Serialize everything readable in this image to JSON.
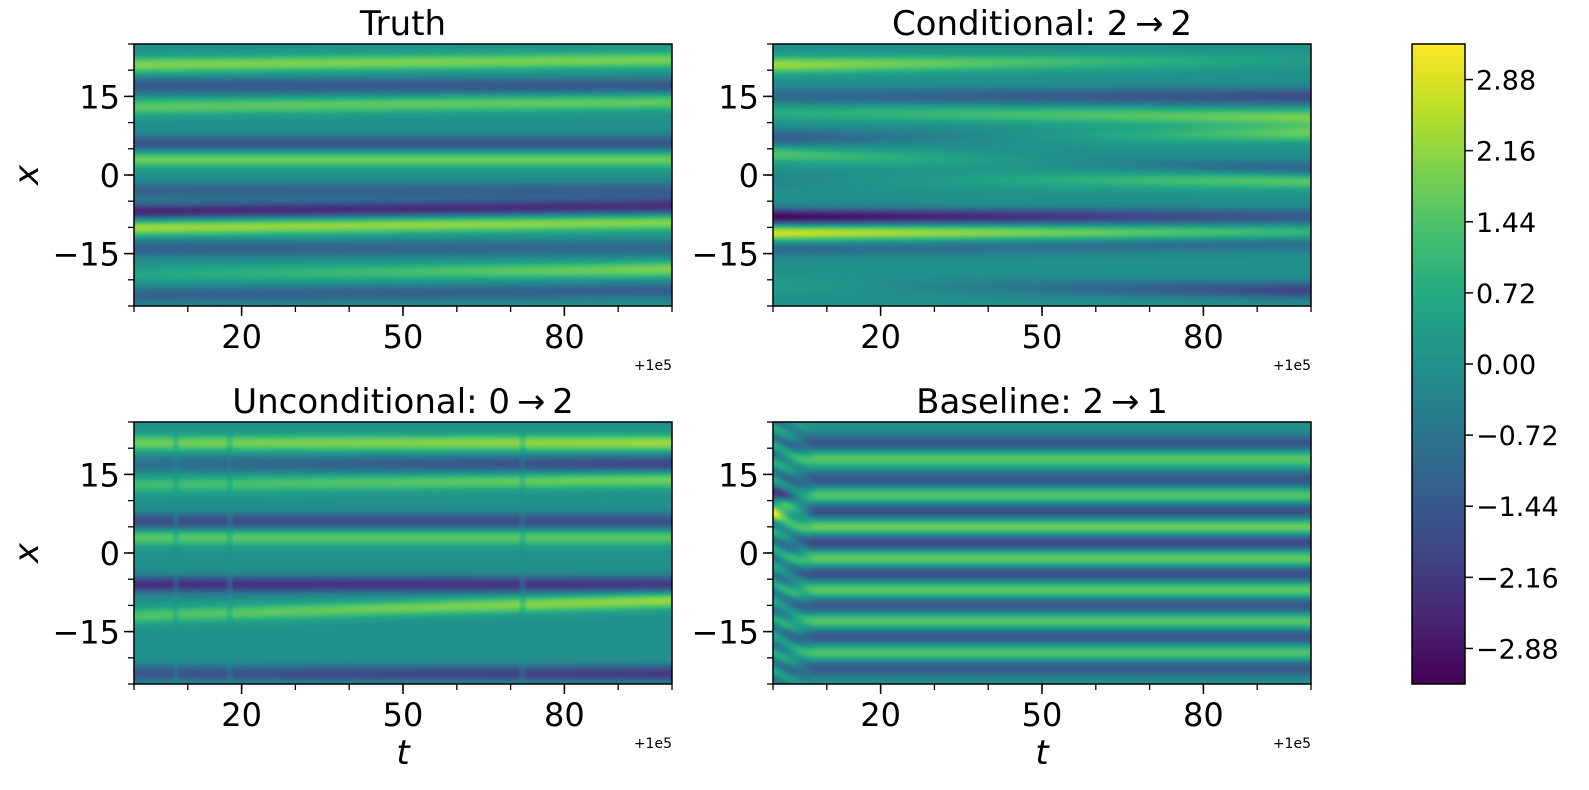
{
  "chart_data": [
    {
      "type": "heatmap",
      "title": "Truth",
      "xlabel": "",
      "ylabel": "x",
      "x_offset_label": "+1e5",
      "xticks": [
        20,
        50,
        80
      ],
      "yticks": [
        15,
        0,
        -15
      ],
      "ytick_labels": [
        "15",
        "0",
        "−15"
      ],
      "xlim": [
        0,
        100
      ],
      "ylim": [
        -25,
        25
      ],
      "bands": [
        {
          "y0": 21,
          "y1": 22,
          "a0": 2.0,
          "a1": 1.9
        },
        {
          "y0": 17,
          "y1": 17,
          "a0": -1.5,
          "a1": -1.5
        },
        {
          "y0": 13,
          "y1": 14,
          "a0": 1.6,
          "a1": 1.7
        },
        {
          "y0": 6,
          "y1": 6,
          "a0": -1.6,
          "a1": -1.6
        },
        {
          "y0": 3,
          "y1": 3,
          "a0": 1.8,
          "a1": 1.8
        },
        {
          "y0": -3,
          "y1": -3,
          "a0": -1.2,
          "a1": -1.3
        },
        {
          "y0": -7,
          "y1": -6,
          "a0": -2.6,
          "a1": -2.4
        },
        {
          "y0": -10,
          "y1": -9,
          "a0": 2.4,
          "a1": 2.1
        },
        {
          "y0": -14,
          "y1": -14,
          "a0": -1.3,
          "a1": -1.0
        },
        {
          "y0": -19,
          "y1": -18,
          "a0": 0.6,
          "a1": 2.0
        },
        {
          "y0": -23,
          "y1": -22,
          "a0": -1.2,
          "a1": -1.3
        }
      ]
    },
    {
      "type": "heatmap",
      "title": "Conditional: 2 → 2",
      "xlabel": "",
      "ylabel": "",
      "x_offset_label": "+1e5",
      "xticks": [
        20,
        50,
        80
      ],
      "yticks": [
        15,
        0,
        -15
      ],
      "ytick_labels": [
        "15",
        "0",
        "−15"
      ],
      "xlim": [
        0,
        100
      ],
      "ylim": [
        -25,
        25
      ],
      "bands": [
        {
          "y0": 21,
          "y1": 22,
          "a0": 2.3,
          "a1": 0.3
        },
        {
          "y0": 15,
          "y1": 15,
          "a0": -1.0,
          "a1": -1.8
        },
        {
          "y0": 12,
          "y1": 11,
          "a0": 0.8,
          "a1": 1.9
        },
        {
          "y0": 7,
          "y1": 8,
          "a0": -1.4,
          "a1": 1.8
        },
        {
          "y0": 4,
          "y1": 1,
          "a0": 1.5,
          "a1": -1.4
        },
        {
          "y0": -1,
          "y1": -1,
          "a0": -0.3,
          "a1": 1.8
        },
        {
          "y0": -8,
          "y1": -8,
          "a0": -3.2,
          "a1": -1.4
        },
        {
          "y0": -11,
          "y1": -11,
          "a0": 2.9,
          "a1": 1.2
        },
        {
          "y0": -14,
          "y1": -13,
          "a0": -1.0,
          "a1": -1.0
        },
        {
          "y0": -21,
          "y1": -22,
          "a0": 0.4,
          "a1": -2.0
        }
      ]
    },
    {
      "type": "heatmap",
      "title": "Unconditional: 0 → 2",
      "xlabel": "t",
      "ylabel": "x",
      "x_offset_label": "+1e5",
      "xticks": [
        20,
        50,
        80
      ],
      "yticks": [
        15,
        0,
        -15
      ],
      "ytick_labels": [
        "15",
        "0",
        "−15"
      ],
      "xlim": [
        0,
        100
      ],
      "ylim": [
        -25,
        25
      ],
      "discontinuities": [
        8,
        18,
        72
      ],
      "bands": [
        {
          "y0": 21,
          "y1": 21,
          "a0": 1.8,
          "a1": 2.3
        },
        {
          "y0": 17,
          "y1": 17,
          "a0": -0.8,
          "a1": -2.0
        },
        {
          "y0": 13,
          "y1": 14,
          "a0": 1.2,
          "a1": 1.9
        },
        {
          "y0": 6,
          "y1": 6,
          "a0": -1.8,
          "a1": -1.8
        },
        {
          "y0": 3,
          "y1": 3,
          "a0": 1.6,
          "a1": 1.6
        },
        {
          "y0": -6,
          "y1": -6,
          "a0": -2.4,
          "a1": -2.2
        },
        {
          "y0": -12,
          "y1": -9,
          "a0": 1.4,
          "a1": 2.3
        },
        {
          "y0": -23,
          "y1": -23,
          "a0": -1.5,
          "a1": -2.2
        }
      ]
    },
    {
      "type": "heatmap",
      "title": "Baseline: 2 → 1",
      "xlabel": "t",
      "ylabel": "",
      "x_offset_label": "+1e5",
      "xticks": [
        20,
        50,
        80
      ],
      "yticks": [
        15,
        0,
        -15
      ],
      "ytick_labels": [
        "15",
        "0",
        "−15"
      ],
      "xlim": [
        0,
        100
      ],
      "ylim": [
        -25,
        25
      ],
      "transient_until": 8,
      "bands": [
        {
          "y0": 21,
          "y1": 21,
          "a0": -1.6,
          "a1": -1.6
        },
        {
          "y0": 18,
          "y1": 18,
          "a0": 1.6,
          "a1": 1.6
        },
        {
          "y0": 14,
          "y1": 14,
          "a0": -1.6,
          "a1": -1.6
        },
        {
          "y0": 11,
          "y1": 11,
          "a0": 1.6,
          "a1": 1.6
        },
        {
          "y0": 8,
          "y1": 8,
          "a0": -1.8,
          "a1": -1.8
        },
        {
          "y0": 5,
          "y1": 5,
          "a0": 1.9,
          "a1": 1.9
        },
        {
          "y0": 2,
          "y1": 2,
          "a0": -2.0,
          "a1": -2.0
        },
        {
          "y0": -1,
          "y1": -1,
          "a0": 1.8,
          "a1": 1.8
        },
        {
          "y0": -4,
          "y1": -4,
          "a0": -1.8,
          "a1": -1.8
        },
        {
          "y0": -7,
          "y1": -7,
          "a0": 1.7,
          "a1": 1.7
        },
        {
          "y0": -10,
          "y1": -10,
          "a0": -1.6,
          "a1": -1.6
        },
        {
          "y0": -13,
          "y1": -13,
          "a0": 1.6,
          "a1": 1.6
        },
        {
          "y0": -16,
          "y1": -16,
          "a0": -1.6,
          "a1": -1.6
        },
        {
          "y0": -19,
          "y1": -19,
          "a0": 1.5,
          "a1": 1.5
        },
        {
          "y0": -22,
          "y1": -22,
          "a0": -1.5,
          "a1": -1.5
        }
      ]
    }
  ],
  "colorbar": {
    "colormap": "viridis",
    "vmin": -3.24,
    "vmax": 3.24,
    "ticks": [
      2.88,
      2.16,
      1.44,
      0.72,
      0.0,
      -0.72,
      -1.44,
      -2.16,
      -2.88
    ],
    "tick_labels": [
      "2.88",
      "2.16",
      "1.44",
      "0.72",
      "0.00",
      "−0.72",
      "−1.44",
      "−2.16",
      "−2.88"
    ]
  },
  "colors": {
    "viridis_stops": [
      "#440154",
      "#482475",
      "#414487",
      "#355f8d",
      "#2a788e",
      "#21918c",
      "#22a884",
      "#44bf70",
      "#7ad151",
      "#bddf26",
      "#fde725"
    ]
  }
}
